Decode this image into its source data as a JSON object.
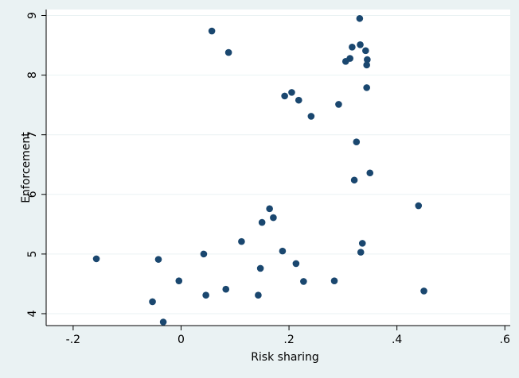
{
  "chart_data": {
    "type": "scatter",
    "title": "",
    "xlabel": "Risk sharing",
    "ylabel": "Enforcement",
    "xlim": [
      -0.25,
      0.61
    ],
    "ylim": [
      3.8,
      9.1
    ],
    "x_ticks": [
      -0.2,
      0,
      0.2,
      0.4,
      0.6
    ],
    "x_tick_labels": [
      "-.2",
      "0",
      ".2",
      ".4",
      ".6"
    ],
    "y_ticks": [
      4,
      5,
      6,
      7,
      8,
      9
    ],
    "y_tick_labels": [
      "4",
      "5",
      "6",
      "7",
      "8",
      "9"
    ],
    "grid": "horizontal",
    "legend": "none",
    "colors": {
      "background": "#eaf2f3",
      "plot_background": "#ffffff",
      "marker": "#1a476f",
      "grid": "#eaf2f3",
      "axis": "#000000"
    },
    "series": [
      {
        "points": [
          {
            "x": 0.057,
            "y": 8.74
          },
          {
            "x": 0.088,
            "y": 8.38
          },
          {
            "x": 0.331,
            "y": 8.95
          },
          {
            "x": 0.317,
            "y": 8.47
          },
          {
            "x": 0.332,
            "y": 8.51
          },
          {
            "x": 0.342,
            "y": 8.41
          },
          {
            "x": 0.313,
            "y": 8.28
          },
          {
            "x": 0.305,
            "y": 8.23
          },
          {
            "x": 0.345,
            "y": 8.26
          },
          {
            "x": 0.344,
            "y": 8.17
          },
          {
            "x": 0.344,
            "y": 7.79
          },
          {
            "x": 0.205,
            "y": 7.71
          },
          {
            "x": 0.192,
            "y": 7.65
          },
          {
            "x": 0.218,
            "y": 7.58
          },
          {
            "x": 0.292,
            "y": 7.51
          },
          {
            "x": 0.241,
            "y": 7.31
          },
          {
            "x": 0.325,
            "y": 6.88
          },
          {
            "x": 0.35,
            "y": 6.36
          },
          {
            "x": 0.321,
            "y": 6.24
          },
          {
            "x": 0.44,
            "y": 5.81
          },
          {
            "x": 0.164,
            "y": 5.76
          },
          {
            "x": 0.171,
            "y": 5.61
          },
          {
            "x": 0.15,
            "y": 5.53
          },
          {
            "x": 0.112,
            "y": 5.21
          },
          {
            "x": 0.336,
            "y": 5.18
          },
          {
            "x": 0.188,
            "y": 5.05
          },
          {
            "x": 0.333,
            "y": 5.03
          },
          {
            "x": 0.042,
            "y": 5.0
          },
          {
            "x": -0.157,
            "y": 4.92
          },
          {
            "x": -0.042,
            "y": 4.91
          },
          {
            "x": 0.213,
            "y": 4.84
          },
          {
            "x": 0.147,
            "y": 4.76
          },
          {
            "x": -0.004,
            "y": 4.55
          },
          {
            "x": 0.284,
            "y": 4.55
          },
          {
            "x": 0.227,
            "y": 4.54
          },
          {
            "x": 0.083,
            "y": 4.41
          },
          {
            "x": 0.45,
            "y": 4.38
          },
          {
            "x": 0.046,
            "y": 4.31
          },
          {
            "x": 0.143,
            "y": 4.31
          },
          {
            "x": -0.053,
            "y": 4.2
          },
          {
            "x": -0.033,
            "y": 3.86
          }
        ]
      }
    ]
  }
}
